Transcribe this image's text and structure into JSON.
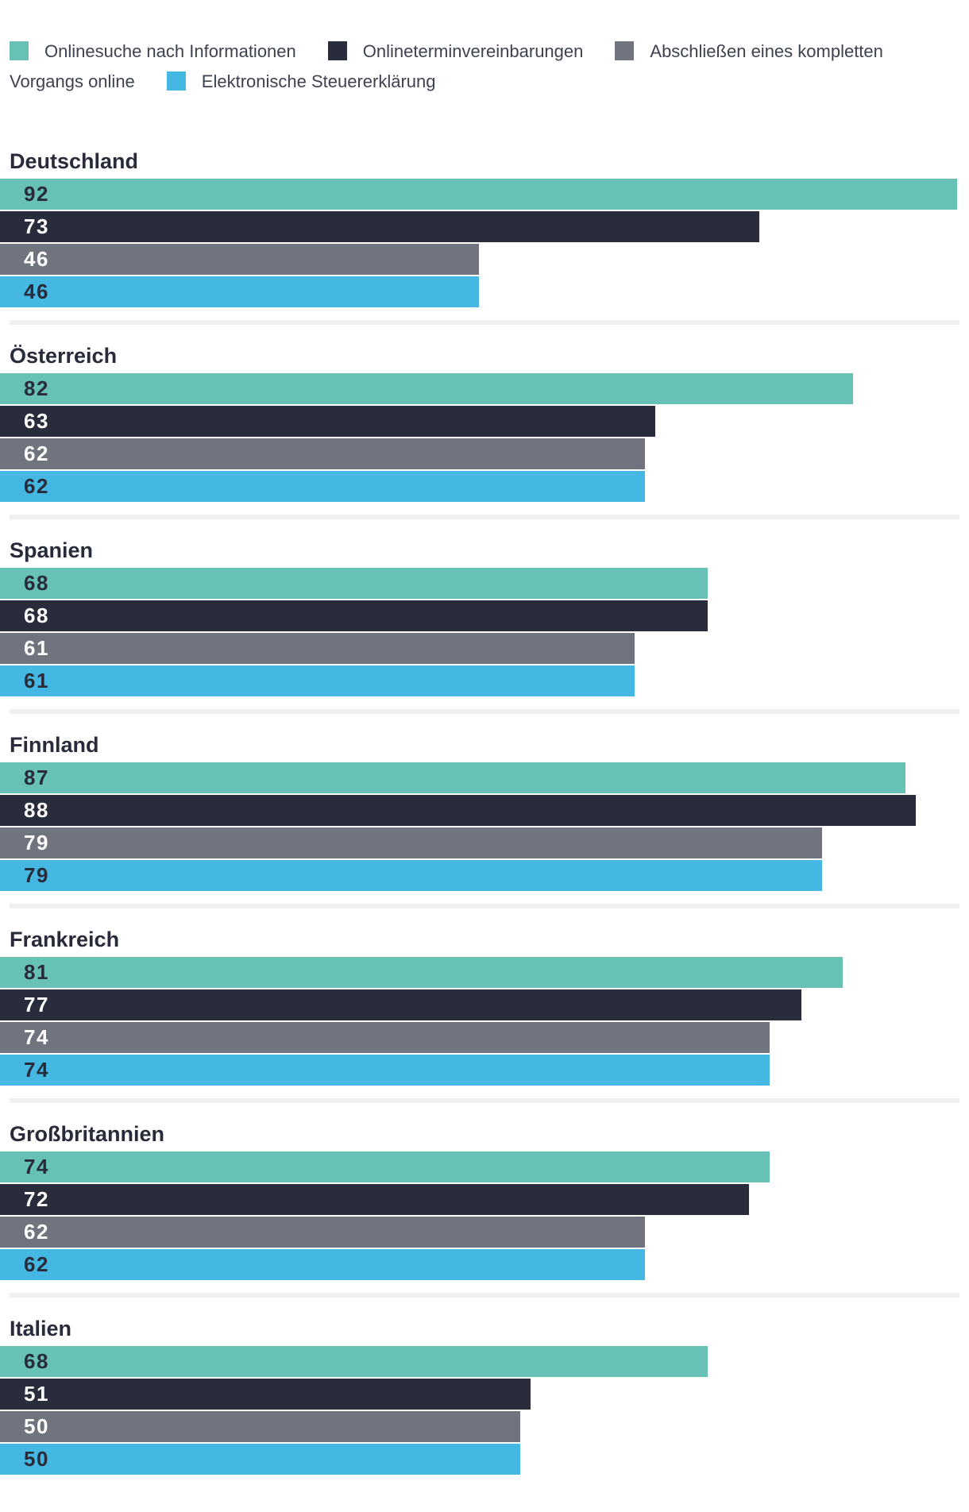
{
  "legend": {
    "items": [
      {
        "label": "Onlinesuche nach Informationen",
        "color": "#68c1b5"
      },
      {
        "label": "Onlineterminvereinbarungen",
        "color": "#292c3b"
      },
      {
        "label": "Abschließen eines kompletten Vorgangs online",
        "color": "#70747f"
      },
      {
        "label": "Elektronische Steuererklärung",
        "color": "#44b7e3"
      }
    ]
  },
  "chart_data": {
    "type": "bar",
    "orientation": "horizontal",
    "categories": [
      "Deutschland",
      "Österreich",
      "Spanien",
      "Finnland",
      "Frankreich",
      "Großbritannien",
      "Italien"
    ],
    "xlim": [
      0,
      93
    ],
    "grid": false,
    "legend_position": "top",
    "value_labels": "inside-left",
    "series": [
      {
        "name": "Onlinesuche nach Informationen",
        "color": "#68c1b5",
        "label_color": "#272b3a",
        "values": [
          92,
          82,
          68,
          87,
          81,
          74,
          68
        ]
      },
      {
        "name": "Onlineterminvereinbarungen",
        "color": "#292c3b",
        "label_color": "#ffffff",
        "values": [
          73,
          63,
          68,
          88,
          77,
          72,
          51
        ]
      },
      {
        "name": "Abschließen eines kompletten Vorgangs online",
        "color": "#70747f",
        "label_color": "#ffffff",
        "values": [
          46,
          62,
          61,
          79,
          74,
          62,
          50
        ]
      },
      {
        "name": "Elektronische Steuererklärung",
        "color": "#44b7e3",
        "label_color": "#272b3a",
        "values": [
          46,
          62,
          61,
          79,
          74,
          62,
          50
        ]
      }
    ]
  }
}
